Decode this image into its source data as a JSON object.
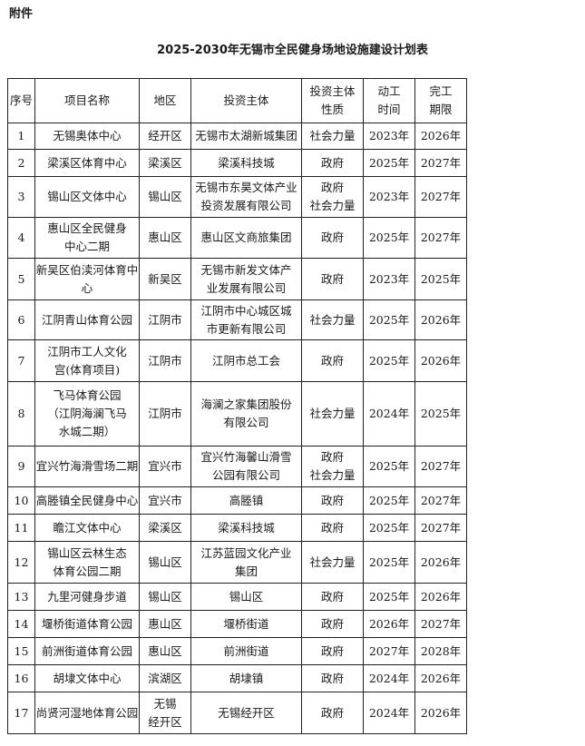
{
  "attachment_label": "附件",
  "title": "2025-2030年无锡市全民健身场地设施建设计划表",
  "table": {
    "headers": [
      "序号",
      "项目名称",
      "地区",
      "投资主体",
      "投资主体\n性质",
      "动工\n时间",
      "完工\n期限"
    ],
    "rows": [
      [
        "1",
        "无锡奥体中心",
        "经开区",
        "无锡市太湖新城集团",
        "社会力量",
        "2023年",
        "2026年"
      ],
      [
        "2",
        "梁溪区体育中心",
        "梁溪区",
        "梁溪科技城",
        "政府",
        "2025年",
        "2027年"
      ],
      [
        "3",
        "锡山区文体中心",
        "锡山区",
        "无锡市东昊文体产业\n投资发展有限公司",
        "政府\n社会力量",
        "2023年",
        "2027年"
      ],
      [
        "4",
        "惠山区全民健身\n中心二期",
        "惠山区",
        "惠山区文商旅集团",
        "政府",
        "2025年",
        "2027年"
      ],
      [
        "5",
        "新吴区伯渎河体育中心",
        "新吴区",
        "无锡市新发文体产\n业发展有限公司",
        "政府",
        "2023年",
        "2025年"
      ],
      [
        "6",
        "江阴青山体育公园",
        "江阴市",
        "江阴市中心城区城\n市更新有限公司",
        "社会力量",
        "2025年",
        "2026年"
      ],
      [
        "7",
        "江阴市工人文化\n宫(体育项目)",
        "江阴市",
        "江阴市总工会",
        "政府",
        "2025年",
        "2026年"
      ],
      [
        "8",
        "飞马体育公园\n（江阴海澜飞马\n水城二期）",
        "江阴市",
        "海澜之家集团股份\n有限公司",
        "社会力量",
        "2024年",
        "2025年"
      ],
      [
        "9",
        "宜兴竹海滑雪场二期",
        "宜兴市",
        "宜兴竹海馨山滑雪\n公园有限公司",
        "政府\n社会力量",
        "2025年",
        "2027年"
      ],
      [
        "10",
        "高塍镇全民健身中心",
        "宜兴市",
        "高塍镇",
        "政府",
        "2025年",
        "2027年"
      ],
      [
        "11",
        "瞻江文体中心",
        "梁溪区",
        "梁溪科技城",
        "政府",
        "2025年",
        "2027年"
      ],
      [
        "12",
        "锡山区云林生态\n体育公园二期",
        "锡山区",
        "江苏蓝园文化产业\n集团",
        "社会力量",
        "2025年",
        "2026年"
      ],
      [
        "13",
        "九里河健身步道",
        "锡山区",
        "锡山区",
        "政府",
        "2025年",
        "2026年"
      ],
      [
        "14",
        "堰桥街道体育公园",
        "惠山区",
        "堰桥街道",
        "政府",
        "2026年",
        "2027年"
      ],
      [
        "15",
        "前洲街道体育公园",
        "惠山区",
        "前洲街道",
        "政府",
        "2027年",
        "2028年"
      ],
      [
        "16",
        "胡埭文体中心",
        "滨湖区",
        "胡埭镇",
        "政府",
        "2024年",
        "2026年"
      ],
      [
        "17",
        "尚贤河湿地体育公园",
        "无锡\n经开区",
        "无锡经开区",
        "政府",
        "2024年",
        "2026年"
      ]
    ]
  }
}
